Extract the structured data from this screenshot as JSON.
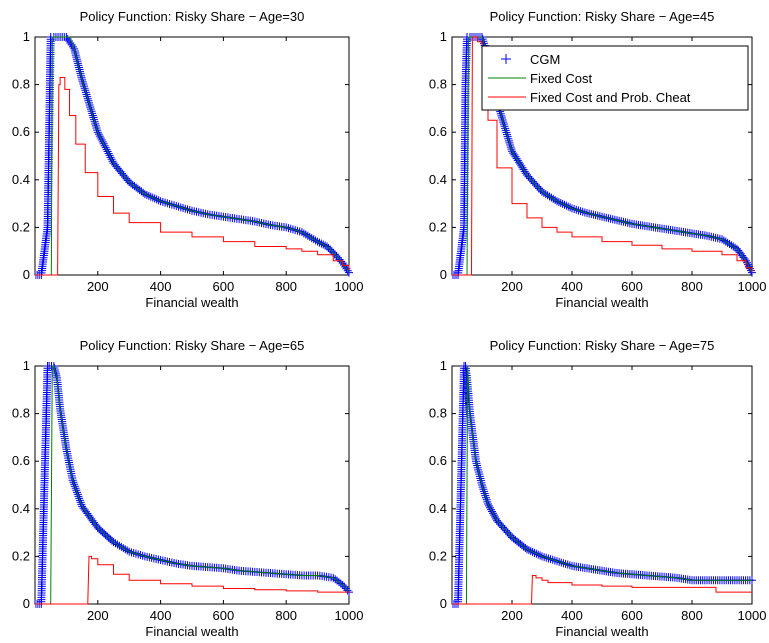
{
  "chart_data": [
    {
      "type": "line",
      "title": "Policy Function: Risky Share − Age=30",
      "xlabel": "Financial wealth",
      "ylabel": "",
      "xlim": [
        0,
        1000
      ],
      "ylim": [
        0,
        1
      ],
      "xticks": [
        200,
        400,
        600,
        800,
        1000
      ],
      "yticks": [
        0,
        0.2,
        0.4,
        0.6,
        0.8,
        1
      ],
      "legend": null,
      "series": [
        {
          "name": "CGM",
          "color": "#0000ff",
          "marker": "+",
          "x": [
            0,
            20,
            40,
            50,
            60,
            80,
            100,
            125,
            150,
            200,
            250,
            300,
            350,
            400,
            450,
            500,
            550,
            600,
            650,
            700,
            750,
            800,
            850,
            900,
            930,
            960,
            980,
            1000
          ],
          "y": [
            0,
            0,
            0.2,
            1,
            1,
            1,
            1,
            0.95,
            0.82,
            0.6,
            0.47,
            0.39,
            0.34,
            0.31,
            0.29,
            0.27,
            0.255,
            0.245,
            0.235,
            0.225,
            0.21,
            0.2,
            0.18,
            0.14,
            0.12,
            0.08,
            0.05,
            0.01
          ]
        },
        {
          "name": "Fixed Cost",
          "color": "#008000",
          "x": [
            0,
            20,
            48,
            52,
            55,
            80,
            110,
            125,
            150,
            200,
            250,
            300,
            350,
            400,
            450,
            500,
            550,
            600,
            650,
            700,
            750,
            800,
            850,
            900,
            930,
            960,
            980,
            1000
          ],
          "y": [
            0,
            0,
            0,
            0,
            1,
            1,
            1,
            0.95,
            0.82,
            0.6,
            0.47,
            0.39,
            0.34,
            0.31,
            0.29,
            0.27,
            0.255,
            0.245,
            0.235,
            0.225,
            0.21,
            0.2,
            0.18,
            0.14,
            0.12,
            0.08,
            0.05,
            0.01
          ]
        },
        {
          "name": "Fixed Cost and Prob. Cheat",
          "color": "#ff0000",
          "x": [
            0,
            72,
            76,
            80,
            85,
            95,
            110,
            130,
            160,
            200,
            250,
            300,
            400,
            500,
            600,
            700,
            800,
            850,
            900,
            950,
            980,
            1000
          ],
          "y": [
            0,
            0,
            0.8,
            0.83,
            0.83,
            0.78,
            0.67,
            0.55,
            0.43,
            0.33,
            0.26,
            0.22,
            0.18,
            0.16,
            0.14,
            0.12,
            0.11,
            0.1,
            0.085,
            0.06,
            0.04,
            0.02
          ]
        }
      ]
    },
    {
      "type": "line",
      "title": "Policy Function: Risky Share − Age=45",
      "xlabel": "Financial wealth",
      "ylabel": "",
      "xlim": [
        0,
        1000
      ],
      "ylim": [
        0,
        1
      ],
      "xticks": [
        200,
        400,
        600,
        800,
        1000
      ],
      "yticks": [
        0,
        0.2,
        0.4,
        0.6,
        0.8,
        1
      ],
      "legend": "top-right",
      "series": [
        {
          "name": "CGM",
          "color": "#0000ff",
          "marker": "+",
          "x": [
            0,
            20,
            40,
            45,
            50,
            60,
            80,
            100,
            120,
            150,
            200,
            250,
            300,
            350,
            400,
            450,
            500,
            550,
            600,
            650,
            700,
            750,
            800,
            850,
            900,
            950,
            980,
            1000
          ],
          "y": [
            0,
            0,
            0.2,
            0.8,
            1,
            1,
            1,
            1,
            0.92,
            0.73,
            0.52,
            0.42,
            0.35,
            0.31,
            0.28,
            0.26,
            0.245,
            0.23,
            0.215,
            0.205,
            0.195,
            0.185,
            0.175,
            0.165,
            0.15,
            0.11,
            0.06,
            0.01
          ]
        },
        {
          "name": "Fixed Cost",
          "color": "#008000",
          "x": [
            0,
            45,
            50,
            55,
            60,
            70,
            100,
            120,
            150,
            200,
            250,
            300,
            350,
            400,
            450,
            500,
            550,
            600,
            650,
            700,
            750,
            800,
            850,
            900,
            950,
            980,
            1000
          ],
          "y": [
            0,
            0,
            0,
            1,
            1,
            1,
            1,
            0.92,
            0.73,
            0.52,
            0.42,
            0.35,
            0.31,
            0.28,
            0.26,
            0.245,
            0.23,
            0.215,
            0.205,
            0.195,
            0.185,
            0.175,
            0.165,
            0.15,
            0.11,
            0.06,
            0.01
          ]
        },
        {
          "name": "Fixed Cost and Prob. Cheat",
          "color": "#ff0000",
          "x": [
            0,
            65,
            68,
            75,
            85,
            100,
            120,
            150,
            200,
            250,
            300,
            350,
            400,
            500,
            600,
            700,
            800,
            900,
            950,
            980,
            1000
          ],
          "y": [
            0,
            0,
            1,
            1,
            0.98,
            0.85,
            0.65,
            0.45,
            0.3,
            0.24,
            0.2,
            0.18,
            0.16,
            0.14,
            0.125,
            0.11,
            0.1,
            0.085,
            0.06,
            0.03,
            0.01
          ]
        }
      ]
    },
    {
      "type": "line",
      "title": "Policy Function: Risky Share − Age=65",
      "xlabel": "Financial wealth",
      "ylabel": "",
      "xlim": [
        0,
        1000
      ],
      "ylim": [
        0,
        1
      ],
      "xticks": [
        200,
        400,
        600,
        800,
        1000
      ],
      "yticks": [
        0,
        0.2,
        0.4,
        0.6,
        0.8,
        1
      ],
      "legend": null,
      "series": [
        {
          "name": "CGM",
          "color": "#0000ff",
          "marker": "+",
          "x": [
            0,
            20,
            40,
            45,
            60,
            70,
            80,
            100,
            120,
            150,
            200,
            250,
            300,
            350,
            400,
            450,
            500,
            550,
            600,
            650,
            700,
            750,
            800,
            850,
            900,
            950,
            980,
            1000
          ],
          "y": [
            0,
            0,
            1,
            1,
            1,
            0.95,
            0.82,
            0.65,
            0.52,
            0.41,
            0.32,
            0.26,
            0.22,
            0.2,
            0.185,
            0.17,
            0.16,
            0.155,
            0.15,
            0.14,
            0.135,
            0.13,
            0.125,
            0.12,
            0.12,
            0.11,
            0.08,
            0.05
          ]
        },
        {
          "name": "Fixed Cost",
          "color": "#008000",
          "x": [
            0,
            48,
            50,
            55,
            60,
            70,
            80,
            100,
            120,
            150,
            200,
            250,
            300,
            350,
            400,
            450,
            500,
            550,
            600,
            650,
            700,
            750,
            800,
            850,
            900,
            950,
            980,
            1000
          ],
          "y": [
            0,
            0,
            0,
            1,
            1,
            0.95,
            0.82,
            0.65,
            0.52,
            0.41,
            0.32,
            0.26,
            0.22,
            0.2,
            0.185,
            0.17,
            0.16,
            0.155,
            0.15,
            0.14,
            0.135,
            0.13,
            0.125,
            0.12,
            0.12,
            0.11,
            0.08,
            0.05
          ]
        },
        {
          "name": "Fixed Cost and Prob. Cheat",
          "color": "#ff0000",
          "x": [
            0,
            168,
            172,
            180,
            200,
            250,
            300,
            400,
            500,
            600,
            700,
            800,
            900,
            950,
            1000
          ],
          "y": [
            0,
            0,
            0.2,
            0.19,
            0.165,
            0.125,
            0.1,
            0.085,
            0.075,
            0.065,
            0.06,
            0.055,
            0.05,
            0.05,
            0.05
          ]
        }
      ]
    },
    {
      "type": "line",
      "title": "Policy Function: Risky Share − Age=75",
      "xlabel": "Financial wealth",
      "ylabel": "",
      "xlim": [
        0,
        1000
      ],
      "ylim": [
        0,
        1
      ],
      "xticks": [
        200,
        400,
        600,
        800,
        1000
      ],
      "yticks": [
        0,
        0.2,
        0.4,
        0.6,
        0.8,
        1
      ],
      "legend": null,
      "series": [
        {
          "name": "CGM",
          "color": "#0000ff",
          "marker": "+",
          "x": [
            0,
            20,
            40,
            45,
            50,
            60,
            70,
            80,
            100,
            120,
            150,
            200,
            250,
            300,
            350,
            400,
            450,
            500,
            550,
            600,
            650,
            700,
            750,
            800,
            850,
            900,
            950,
            1000
          ],
          "y": [
            0,
            0,
            1,
            1,
            0.95,
            0.8,
            0.7,
            0.6,
            0.5,
            0.42,
            0.35,
            0.28,
            0.23,
            0.2,
            0.18,
            0.16,
            0.15,
            0.14,
            0.13,
            0.125,
            0.12,
            0.115,
            0.11,
            0.1,
            0.1,
            0.1,
            0.1,
            0.1
          ]
        },
        {
          "name": "Fixed Cost",
          "color": "#008000",
          "x": [
            0,
            45,
            48,
            52,
            60,
            70,
            80,
            100,
            120,
            150,
            200,
            250,
            300,
            350,
            400,
            450,
            500,
            550,
            600,
            650,
            700,
            750,
            800,
            850,
            900,
            950,
            1000
          ],
          "y": [
            0,
            0,
            0,
            1,
            0.8,
            0.7,
            0.6,
            0.5,
            0.42,
            0.35,
            0.28,
            0.23,
            0.2,
            0.18,
            0.16,
            0.15,
            0.14,
            0.13,
            0.125,
            0.12,
            0.115,
            0.11,
            0.1,
            0.1,
            0.1,
            0.1,
            0.1
          ]
        },
        {
          "name": "Fixed Cost and Prob. Cheat",
          "color": "#ff0000",
          "x": [
            0,
            265,
            268,
            280,
            300,
            320,
            400,
            500,
            600,
            700,
            800,
            850,
            875,
            880,
            900,
            950,
            1000
          ],
          "y": [
            0,
            0,
            0.12,
            0.11,
            0.1,
            0.09,
            0.08,
            0.075,
            0.07,
            0.07,
            0.07,
            0.07,
            0.07,
            0.05,
            0.05,
            0.05,
            0.05
          ]
        }
      ]
    }
  ]
}
